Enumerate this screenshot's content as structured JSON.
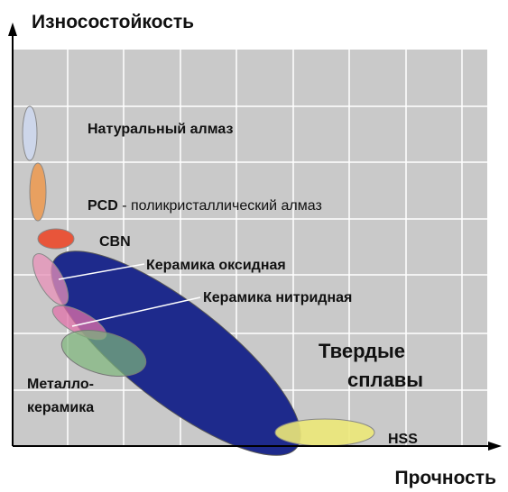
{
  "axes": {
    "y_label": "Износостойкость",
    "x_label": "Прочность"
  },
  "regions": {
    "natural_diamond": "Натуральный алмаз",
    "pcd": {
      "abbr": "PCD",
      "text": " - поликристаллический алмаз"
    },
    "cbn": "CBN",
    "oxide_ceramics": "Керамика оксидная",
    "nitride_ceramics": "Керамика нитридная",
    "hard_alloys": [
      "Твердые",
      "сплавы"
    ],
    "cermet": [
      "Металло-",
      "керамика"
    ],
    "hss": "HSS"
  }
}
